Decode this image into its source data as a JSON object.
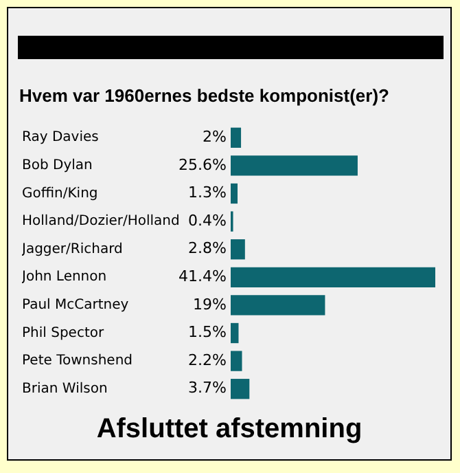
{
  "chart_data": {
    "type": "bar",
    "orientation": "horizontal",
    "title": "Hvem var 1960ernes bedste komponist(er)?",
    "categories": [
      "Ray Davies",
      "Bob Dylan",
      "Goffin/King",
      "Holland/Dozier/Holland",
      "Jagger/Richard",
      "John Lennon",
      "Paul McCartney",
      "Phil Spector",
      "Pete Townshend",
      "Brian Wilson"
    ],
    "values": [
      2,
      25.6,
      1.3,
      0.4,
      2.8,
      41.4,
      19,
      1.5,
      2.2,
      3.7
    ],
    "value_labels": [
      "2%",
      "25.6%",
      "1.3%",
      "0.4%",
      "2.8%",
      "41.4%",
      "19%",
      "1.5%",
      "2.2%",
      "3.7%"
    ],
    "color": "#0d6670",
    "annotations": [
      "Afsluttet afstemning"
    ],
    "grid": false,
    "legend": false
  }
}
